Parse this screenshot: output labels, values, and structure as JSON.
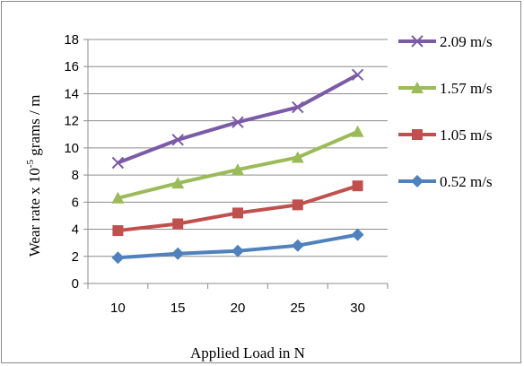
{
  "chart_data": {
    "type": "line",
    "title": "",
    "xlabel": "Applied Load in N",
    "ylabel_main": "Wear rate  x 10",
    "ylabel_exp": "-5",
    "ylabel_tail": " grams / m",
    "categories": [
      10,
      15,
      20,
      25,
      30
    ],
    "ylim": [
      0,
      18
    ],
    "yticks": [
      0,
      2,
      4,
      6,
      8,
      10,
      12,
      14,
      16,
      18
    ],
    "grid": true,
    "legend_position": "right",
    "series": [
      {
        "name": "2.09 m/s",
        "color": "#7b5aa6",
        "marker": "x",
        "values": [
          8.9,
          10.6,
          11.9,
          13.0,
          15.4
        ]
      },
      {
        "name": "1.57 m/s",
        "color": "#9bbb59",
        "marker": "triangle",
        "values": [
          6.3,
          7.4,
          8.4,
          9.3,
          11.2
        ]
      },
      {
        "name": "1.05 m/s",
        "color": "#c0504d",
        "marker": "square",
        "values": [
          3.9,
          4.4,
          5.2,
          5.8,
          7.2
        ]
      },
      {
        "name": "0.52 m/s",
        "color": "#4f81bd",
        "marker": "diamond",
        "values": [
          1.9,
          2.2,
          2.4,
          2.8,
          3.6
        ]
      }
    ]
  }
}
